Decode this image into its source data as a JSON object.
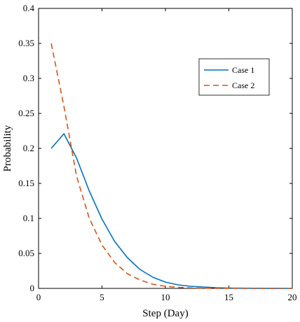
{
  "chart_data": {
    "type": "line",
    "title": "",
    "xlabel": "Step (Day)",
    "ylabel": "Probability",
    "xlim": [
      0,
      20
    ],
    "ylim": [
      0,
      0.4
    ],
    "xticks": [
      0,
      5,
      10,
      15,
      20
    ],
    "yticks": [
      0,
      0.05,
      0.1,
      0.15,
      0.2,
      0.25,
      0.3,
      0.35,
      0.4
    ],
    "grid": false,
    "legend_position": "top-right",
    "series": [
      {
        "name": "Case 1",
        "color": "#0072BD",
        "dash": "solid",
        "x": [
          1,
          2,
          3,
          4,
          5,
          6,
          7,
          8,
          9,
          10,
          11,
          12,
          13,
          14,
          15,
          16,
          17,
          18,
          19,
          20
        ],
        "values": [
          0.2,
          0.221,
          0.186,
          0.139,
          0.099,
          0.067,
          0.044,
          0.027,
          0.016,
          0.009,
          0.005,
          0.003,
          0.002,
          0.001,
          0.0005,
          0.0003,
          0.0002,
          0.0001,
          0.0001,
          0.0
        ]
      },
      {
        "name": "Case 2",
        "color": "#D95319",
        "dash": "dashed",
        "x": [
          1,
          2,
          3,
          4,
          5,
          6,
          7,
          8,
          9,
          10,
          11,
          12,
          13,
          14,
          15,
          16,
          17,
          18,
          19,
          20
        ],
        "values": [
          0.35,
          0.26,
          0.16,
          0.1,
          0.062,
          0.037,
          0.021,
          0.012,
          0.006,
          0.003,
          0.0015,
          0.0007,
          0.0003,
          0.0001,
          0.0001,
          0.0,
          0.0,
          0.0,
          0.0,
          0.0
        ]
      }
    ]
  }
}
